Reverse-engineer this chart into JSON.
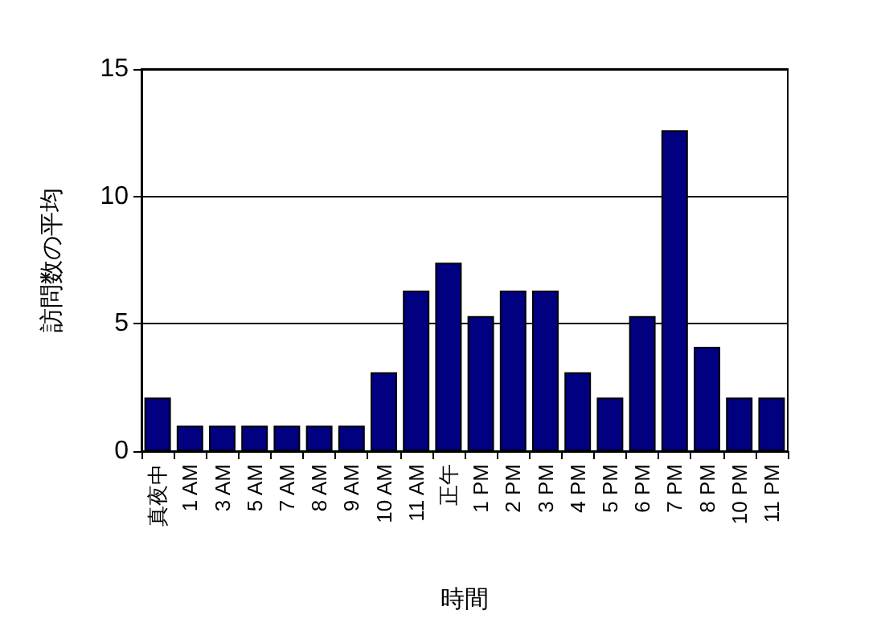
{
  "chart_data": {
    "type": "bar",
    "xlabel": "時間",
    "ylabel": "訪問数の平均",
    "categories": [
      "真夜中",
      "1 AM",
      "3 AM",
      "5 AM",
      "7 AM",
      "8 AM",
      "9 AM",
      "10 AM",
      "11 AM",
      "正午",
      "1 PM",
      "2 PM",
      "3 PM",
      "4 PM",
      "5 PM",
      "6 PM",
      "7 PM",
      "8 PM",
      "10 PM",
      "11 PM"
    ],
    "values": [
      2.1,
      1,
      1,
      1,
      1,
      1,
      1,
      3.1,
      6.3,
      7.4,
      5.3,
      6.3,
      6.3,
      3.1,
      2.1,
      5.3,
      12.6,
      4.1,
      2.1,
      2.1
    ],
    "color": "#000080",
    "ylim": [
      0,
      15
    ],
    "yticks": [
      0,
      5,
      10,
      15
    ],
    "grid": "y"
  }
}
